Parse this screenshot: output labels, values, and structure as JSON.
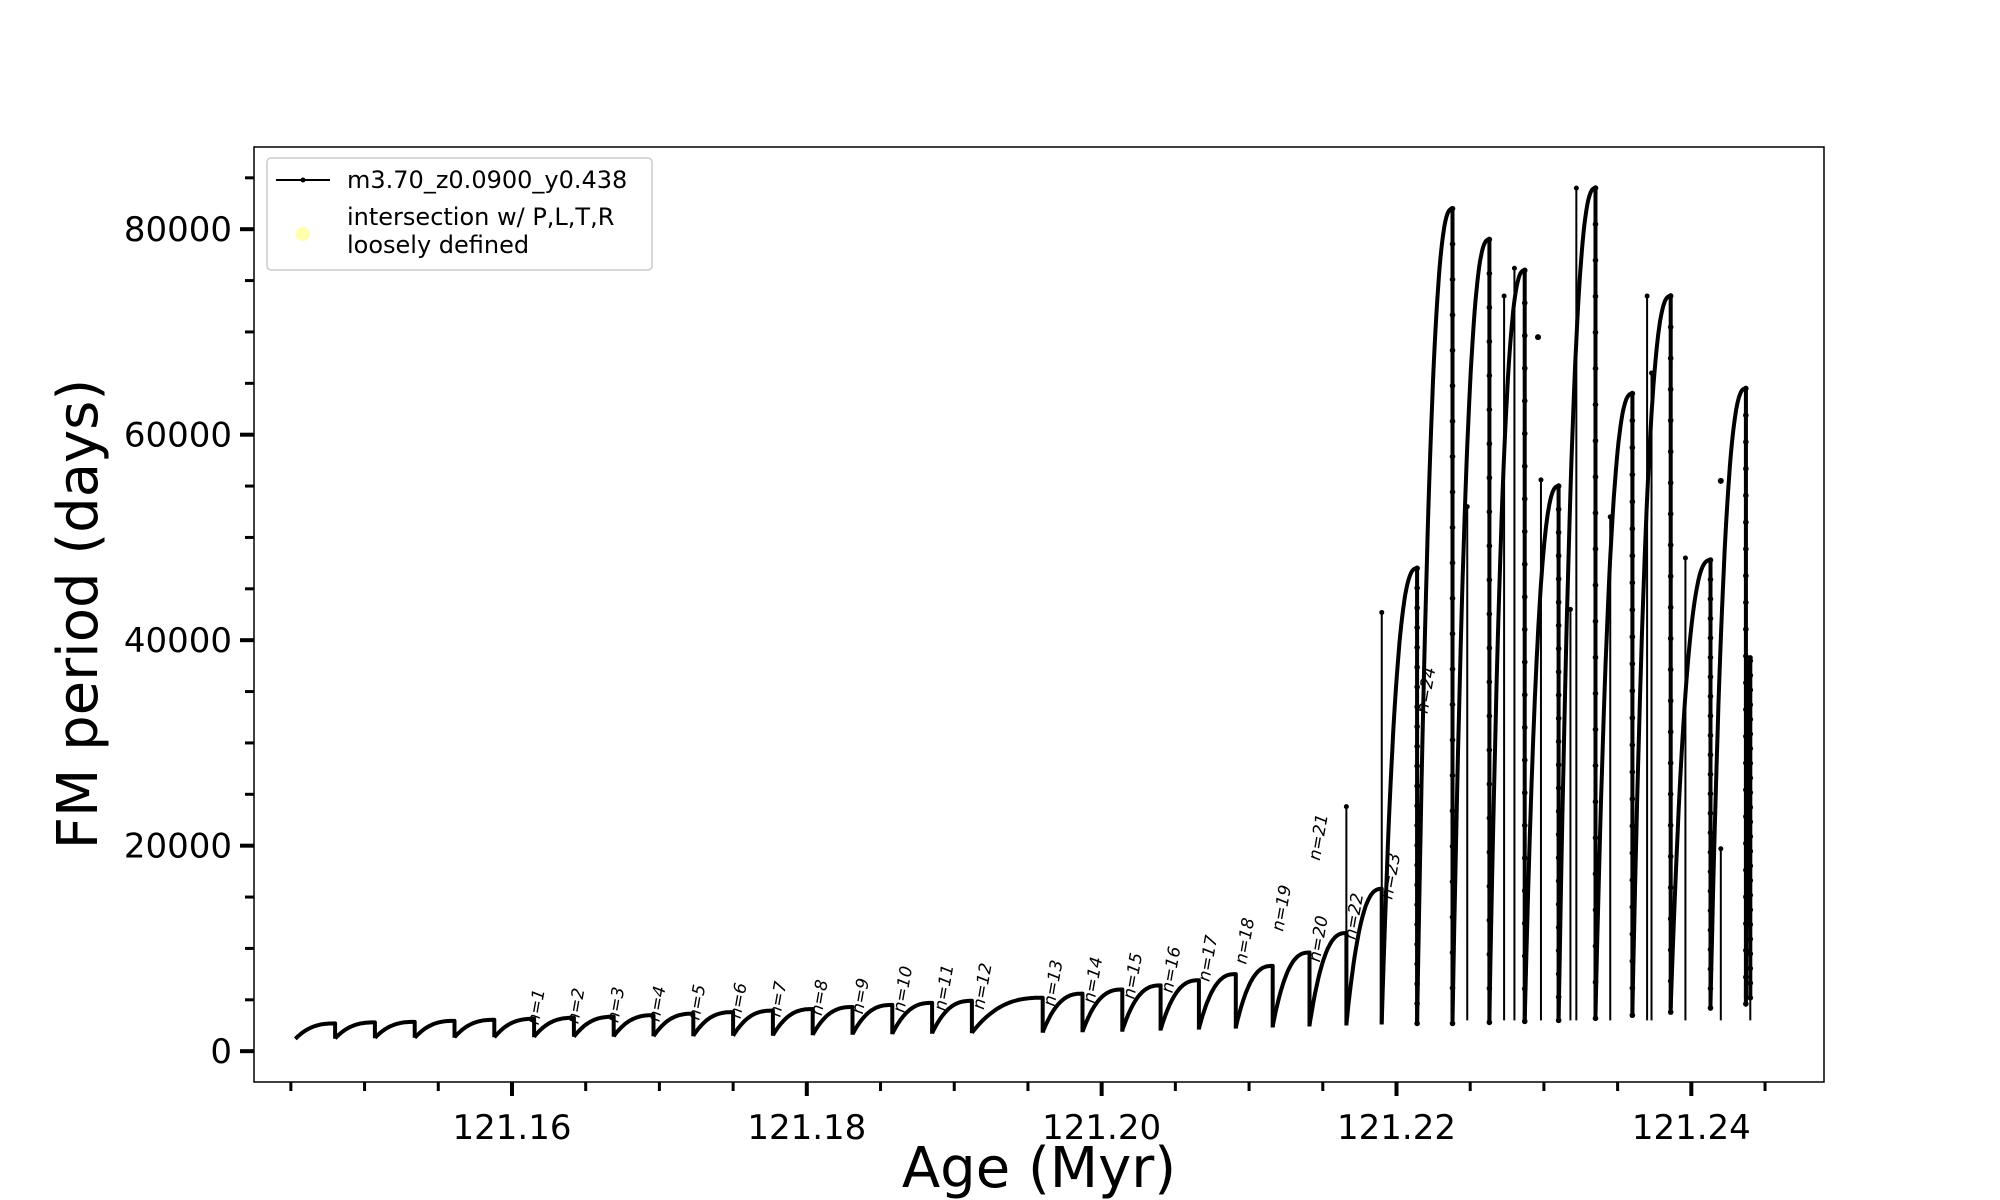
{
  "chart_data": {
    "type": "line",
    "xlabel": "Age (Myr)",
    "ylabel": "FM period (days)",
    "xlim": [
      121.1425,
      121.249
    ],
    "ylim": [
      -3000,
      88000
    ],
    "x_ticks_major": [
      "121.16",
      "121.18",
      "121.20",
      "121.22",
      "121.24"
    ],
    "x_ticks_major_values": [
      121.16,
      121.18,
      121.2,
      121.22,
      121.24
    ],
    "x_ticks_minor_values": [
      121.145,
      121.15,
      121.155,
      121.165,
      121.17,
      121.175,
      121.185,
      121.19,
      121.195,
      121.205,
      121.21,
      121.215,
      121.225,
      121.23,
      121.235,
      121.245
    ],
    "y_ticks_major": [
      "0",
      "20000",
      "40000",
      "60000",
      "80000"
    ],
    "y_ticks_major_values": [
      0,
      20000,
      40000,
      60000,
      80000
    ],
    "y_ticks_minor_values": [
      5000,
      10000,
      15000,
      25000,
      30000,
      35000,
      45000,
      50000,
      55000,
      65000,
      70000,
      75000,
      85000
    ],
    "grid": false,
    "legend_position": "top-left",
    "legend": [
      {
        "label": "m3.70_z0.0900_y0.438",
        "color": "#000000",
        "marker": "line-with-dot"
      },
      {
        "label_line1": "intersection w/ P,L,T,R",
        "label_line2": "loosely defined",
        "color": "#ffff99",
        "marker": "circle"
      }
    ],
    "series": [
      {
        "name": "m3.70_z0.0900_y0.438",
        "color": "#000000",
        "pulse_cycles": [
          {
            "x0": 121.1453,
            "x1": 121.148,
            "y_start": 1200,
            "y_end": 2700
          },
          {
            "x0": 121.148,
            "x1": 121.1507,
            "y_start": 1250,
            "y_end": 2800
          },
          {
            "x0": 121.1507,
            "x1": 121.1534,
            "y_start": 1300,
            "y_end": 2850
          },
          {
            "x0": 121.1534,
            "x1": 121.1561,
            "y_start": 1300,
            "y_end": 2950
          },
          {
            "x0": 121.1561,
            "x1": 121.1588,
            "y_start": 1350,
            "y_end": 3050
          },
          {
            "x0": 121.1588,
            "x1": 121.1615,
            "y_start": 1350,
            "y_end": 3150
          },
          {
            "x0": 121.1615,
            "x1": 121.1642,
            "y_start": 1400,
            "y_end": 3250
          },
          {
            "x0": 121.1642,
            "x1": 121.1669,
            "y_start": 1400,
            "y_end": 3350
          },
          {
            "x0": 121.1669,
            "x1": 121.1696,
            "y_start": 1450,
            "y_end": 3500
          },
          {
            "x0": 121.1696,
            "x1": 121.1723,
            "y_start": 1450,
            "y_end": 3650
          },
          {
            "x0": 121.1723,
            "x1": 121.175,
            "y_start": 1500,
            "y_end": 3800
          },
          {
            "x0": 121.175,
            "x1": 121.1777,
            "y_start": 1500,
            "y_end": 3950
          },
          {
            "x0": 121.1777,
            "x1": 121.1804,
            "y_start": 1550,
            "y_end": 4100
          },
          {
            "x0": 121.1804,
            "x1": 121.1831,
            "y_start": 1600,
            "y_end": 4300
          },
          {
            "x0": 121.1831,
            "x1": 121.1858,
            "y_start": 1650,
            "y_end": 4500
          },
          {
            "x0": 121.1858,
            "x1": 121.1885,
            "y_start": 1700,
            "y_end": 4700
          },
          {
            "x0": 121.1885,
            "x1": 121.1912,
            "y_start": 1750,
            "y_end": 4900
          },
          {
            "x0": 121.1912,
            "x1": 121.196,
            "y_start": 1800,
            "y_end": 5200
          },
          {
            "x0": 121.196,
            "x1": 121.1987,
            "y_start": 1850,
            "y_end": 5600
          },
          {
            "x0": 121.1987,
            "x1": 121.2014,
            "y_start": 1900,
            "y_end": 6000
          },
          {
            "x0": 121.2014,
            "x1": 121.204,
            "y_start": 2000,
            "y_end": 6400
          },
          {
            "x0": 121.204,
            "x1": 121.2066,
            "y_start": 2100,
            "y_end": 6900
          },
          {
            "x0": 121.2066,
            "x1": 121.2091,
            "y_start": 2200,
            "y_end": 7500
          },
          {
            "x0": 121.2091,
            "x1": 121.2116,
            "y_start": 2300,
            "y_end": 8300
          },
          {
            "x0": 121.2116,
            "x1": 121.2141,
            "y_start": 2400,
            "y_end": 9600
          },
          {
            "x0": 121.2141,
            "x1": 121.2166,
            "y_start": 2500,
            "y_end": 11500
          },
          {
            "x0": 121.2166,
            "x1": 121.219,
            "y_start": 2600,
            "y_end": 15800
          },
          {
            "x0": 121.219,
            "x1": 121.2214,
            "y_start": 2700,
            "y_end": 47000
          },
          {
            "x0": 121.2214,
            "x1": 121.2238,
            "y_start": 2700,
            "y_end": 82000
          },
          {
            "x0": 121.2238,
            "x1": 121.2263,
            "y_start": 2800,
            "y_end": 79000
          },
          {
            "x0": 121.2263,
            "x1": 121.2287,
            "y_start": 2900,
            "y_end": 76000
          },
          {
            "x0": 121.2287,
            "x1": 121.231,
            "y_start": 3000,
            "y_end": 55000
          },
          {
            "x0": 121.231,
            "x1": 121.2335,
            "y_start": 3200,
            "y_end": 84000
          },
          {
            "x0": 121.2335,
            "x1": 121.236,
            "y_start": 3500,
            "y_end": 64000
          },
          {
            "x0": 121.236,
            "x1": 121.2386,
            "y_start": 3800,
            "y_end": 73500
          },
          {
            "x0": 121.2386,
            "x1": 121.2413,
            "y_start": 4200,
            "y_end": 47800
          },
          {
            "x0": 121.2413,
            "x1": 121.2437,
            "y_start": 4600,
            "y_end": 64500
          },
          {
            "x0": 121.2437,
            "x1": 121.244,
            "y_start": 5200,
            "y_end": 38000
          }
        ],
        "spikes": [
          {
            "x": 121.2166,
            "y": 23800
          },
          {
            "x": 121.219,
            "y": 42700
          },
          {
            "x": 121.2248,
            "y": 53000
          },
          {
            "x": 121.2273,
            "y": 73500
          },
          {
            "x": 121.228,
            "y": 76200
          },
          {
            "x": 121.2298,
            "y": 55600
          },
          {
            "x": 121.2322,
            "y": 84000
          },
          {
            "x": 121.2318,
            "y": 43000
          },
          {
            "x": 121.2345,
            "y": 52000
          },
          {
            "x": 121.237,
            "y": 73500
          },
          {
            "x": 121.2373,
            "y": 66000
          },
          {
            "x": 121.2396,
            "y": 48000
          },
          {
            "x": 121.242,
            "y": 19700
          },
          {
            "x": 121.244,
            "y": 38300
          }
        ],
        "isolated_points": [
          {
            "x": 121.2296,
            "y": 69500
          },
          {
            "x": 121.242,
            "y": 55500
          }
        ]
      }
    ],
    "annotations": [
      {
        "text": "n=1",
        "x": 121.1618,
        "y": 2500
      },
      {
        "text": "n=2",
        "x": 121.1645,
        "y": 2600
      },
      {
        "text": "n=3",
        "x": 121.1672,
        "y": 2700
      },
      {
        "text": "n=4",
        "x": 121.17,
        "y": 2800
      },
      {
        "text": "n=5",
        "x": 121.1727,
        "y": 2950
      },
      {
        "text": "n=6",
        "x": 121.1755,
        "y": 3100
      },
      {
        "text": "n=7",
        "x": 121.1782,
        "y": 3250
      },
      {
        "text": "n=8",
        "x": 121.181,
        "y": 3400
      },
      {
        "text": "n=9",
        "x": 121.1838,
        "y": 3550
      },
      {
        "text": "n=10",
        "x": 121.1866,
        "y": 3700
      },
      {
        "text": "n=11",
        "x": 121.1894,
        "y": 3850
      },
      {
        "text": "n=12",
        "x": 121.192,
        "y": 4000
      },
      {
        "text": "n=13",
        "x": 121.1968,
        "y": 4300
      },
      {
        "text": "n=14",
        "x": 121.1995,
        "y": 4600
      },
      {
        "text": "n=15",
        "x": 121.2022,
        "y": 5000
      },
      {
        "text": "n=16",
        "x": 121.2048,
        "y": 5600
      },
      {
        "text": "n=17",
        "x": 121.2073,
        "y": 6700
      },
      {
        "text": "n=18",
        "x": 121.2098,
        "y": 8400
      },
      {
        "text": "n=19",
        "x": 121.2123,
        "y": 11600
      },
      {
        "text": "n=20",
        "x": 121.2148,
        "y": 8600
      },
      {
        "text": "n=21",
        "x": 121.2148,
        "y": 18500
      },
      {
        "text": "n=22",
        "x": 121.2172,
        "y": 10800
      },
      {
        "text": "n=23",
        "x": 121.2197,
        "y": 14700
      },
      {
        "text": "n=24",
        "x": 121.2221,
        "y": 32800
      }
    ]
  }
}
